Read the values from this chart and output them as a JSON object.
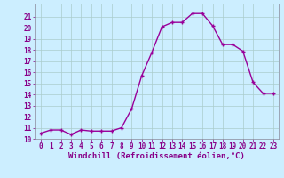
{
  "x": [
    0,
    1,
    2,
    3,
    4,
    5,
    6,
    7,
    8,
    9,
    10,
    11,
    12,
    13,
    14,
    15,
    16,
    17,
    18,
    19,
    20,
    21,
    22,
    23
  ],
  "y": [
    10.5,
    10.8,
    10.8,
    10.4,
    10.8,
    10.7,
    10.7,
    10.7,
    11.0,
    12.7,
    15.7,
    17.8,
    20.1,
    20.5,
    20.5,
    21.3,
    21.3,
    20.2,
    18.5,
    18.5,
    17.9,
    15.1,
    14.1,
    14.1
  ],
  "line_color": "#990099",
  "marker": "+",
  "marker_size": 3,
  "bg_color": "#cceeff",
  "grid_color": "#aacccc",
  "xlabel": "Windchill (Refroidissement éolien,°C)",
  "ylim_min": 10,
  "ylim_max": 22,
  "xlim_min": -0.5,
  "xlim_max": 23.5,
  "yticks": [
    10,
    11,
    12,
    13,
    14,
    15,
    16,
    17,
    18,
    19,
    20,
    21
  ],
  "xticks": [
    0,
    1,
    2,
    3,
    4,
    5,
    6,
    7,
    8,
    9,
    10,
    11,
    12,
    13,
    14,
    15,
    16,
    17,
    18,
    19,
    20,
    21,
    22,
    23
  ],
  "tick_fontsize": 5.5,
  "xlabel_fontsize": 6.5,
  "line_width": 1.0,
  "spine_color": "#888899",
  "text_color": "#880088"
}
